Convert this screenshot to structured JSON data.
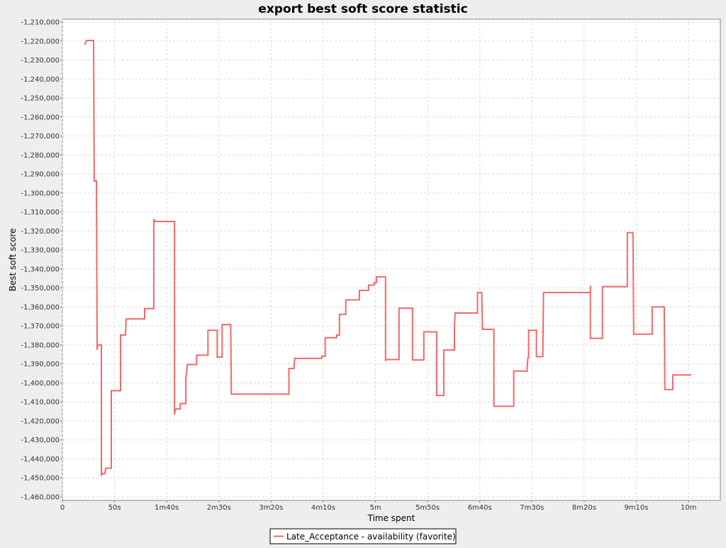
{
  "chart_data": {
    "type": "line",
    "title": "export best soft score statistic",
    "xlabel": "Time spent",
    "ylabel": "Best soft score",
    "x_unit": "seconds",
    "xlim": [
      0,
      630
    ],
    "ylim": [
      -1460000,
      -1210000
    ],
    "x_ticks": [
      {
        "value": 0,
        "label": "0"
      },
      {
        "value": 50,
        "label": "50s"
      },
      {
        "value": 100,
        "label": "1m40s"
      },
      {
        "value": 150,
        "label": "2m30s"
      },
      {
        "value": 200,
        "label": "3m20s"
      },
      {
        "value": 250,
        "label": "4m10s"
      },
      {
        "value": 300,
        "label": "5m"
      },
      {
        "value": 350,
        "label": "5m50s"
      },
      {
        "value": 400,
        "label": "6m40s"
      },
      {
        "value": 450,
        "label": "7m30s"
      },
      {
        "value": 500,
        "label": "8m20s"
      },
      {
        "value": 550,
        "label": "9m10s"
      },
      {
        "value": 600,
        "label": "10m"
      }
    ],
    "y_ticks": [
      {
        "value": -1210000,
        "label": "-1,210,000"
      },
      {
        "value": -1220000,
        "label": "-1,220,000"
      },
      {
        "value": -1230000,
        "label": "-1,230,000"
      },
      {
        "value": -1240000,
        "label": "-1,240,000"
      },
      {
        "value": -1250000,
        "label": "-1,250,000"
      },
      {
        "value": -1260000,
        "label": "-1,260,000"
      },
      {
        "value": -1270000,
        "label": "-1,270,000"
      },
      {
        "value": -1280000,
        "label": "-1,280,000"
      },
      {
        "value": -1290000,
        "label": "-1,290,000"
      },
      {
        "value": -1300000,
        "label": "-1,300,000"
      },
      {
        "value": -1310000,
        "label": "-1,310,000"
      },
      {
        "value": -1320000,
        "label": "-1,320,000"
      },
      {
        "value": -1330000,
        "label": "-1,330,000"
      },
      {
        "value": -1340000,
        "label": "-1,340,000"
      },
      {
        "value": -1350000,
        "label": "-1,350,000"
      },
      {
        "value": -1360000,
        "label": "-1,360,000"
      },
      {
        "value": -1370000,
        "label": "-1,370,000"
      },
      {
        "value": -1380000,
        "label": "-1,380,000"
      },
      {
        "value": -1390000,
        "label": "-1,390,000"
      },
      {
        "value": -1400000,
        "label": "-1,400,000"
      },
      {
        "value": -1410000,
        "label": "-1,410,000"
      },
      {
        "value": -1420000,
        "label": "-1,420,000"
      },
      {
        "value": -1430000,
        "label": "-1,430,000"
      },
      {
        "value": -1440000,
        "label": "-1,440,000"
      },
      {
        "value": -1450000,
        "label": "-1,450,000"
      },
      {
        "value": -1460000,
        "label": "-1,460,000"
      }
    ],
    "grid": true,
    "legend_position": "bottom-center",
    "series": [
      {
        "name": "Late_Acceptance - availability (favorite)",
        "color": "#f26868",
        "step": true,
        "points": [
          [
            21.4,
            -1222000
          ],
          [
            22.4,
            -1220800
          ],
          [
            23.1,
            -1219700
          ],
          [
            29.9,
            -1219700
          ],
          [
            30.5,
            -1293700
          ],
          [
            32.6,
            -1293700
          ],
          [
            33.3,
            -1382500
          ],
          [
            34.0,
            -1380000
          ],
          [
            37.4,
            -1380000
          ],
          [
            37.4,
            -1448900
          ],
          [
            38.1,
            -1447700
          ],
          [
            40.8,
            -1447700
          ],
          [
            41.5,
            -1444900
          ],
          [
            46.9,
            -1444900
          ],
          [
            46.9,
            -1404100
          ],
          [
            55.7,
            -1404100
          ],
          [
            55.7,
            -1374800
          ],
          [
            60.5,
            -1374800
          ],
          [
            61.1,
            -1366300
          ],
          [
            78.8,
            -1366300
          ],
          [
            78.8,
            -1360900
          ],
          [
            87.6,
            -1360900
          ],
          [
            87.6,
            -1313700
          ],
          [
            88.3,
            -1315000
          ],
          [
            107.4,
            -1315000
          ],
          [
            107.4,
            -1416700
          ],
          [
            108.1,
            -1413700
          ],
          [
            112.9,
            -1413700
          ],
          [
            112.9,
            -1410900
          ],
          [
            118.3,
            -1410900
          ],
          [
            118.3,
            -1397400
          ],
          [
            119.0,
            -1395000
          ],
          [
            119.7,
            -1390300
          ],
          [
            128.6,
            -1390300
          ],
          [
            128.6,
            -1385400
          ],
          [
            139.5,
            -1385400
          ],
          [
            139.5,
            -1372300
          ],
          [
            148.4,
            -1372300
          ],
          [
            148.4,
            -1386400
          ],
          [
            153.1,
            -1386400
          ],
          [
            153.1,
            -1369300
          ],
          [
            161.3,
            -1369300
          ],
          [
            161.9,
            -1405900
          ],
          [
            217.1,
            -1405900
          ],
          [
            217.1,
            -1392400
          ],
          [
            221.9,
            -1392400
          ],
          [
            222.6,
            -1387100
          ],
          [
            248.5,
            -1387100
          ],
          [
            248.5,
            -1385900
          ],
          [
            251.9,
            -1385900
          ],
          [
            251.9,
            -1376200
          ],
          [
            262.8,
            -1376200
          ],
          [
            262.8,
            -1374800
          ],
          [
            265.5,
            -1374800
          ],
          [
            265.5,
            -1363900
          ],
          [
            271.6,
            -1363900
          ],
          [
            271.6,
            -1356300
          ],
          [
            284.6,
            -1356300
          ],
          [
            284.6,
            -1351300
          ],
          [
            293.4,
            -1351300
          ],
          [
            293.4,
            -1348500
          ],
          [
            298.8,
            -1348500
          ],
          [
            298.8,
            -1347200
          ],
          [
            300.9,
            -1347200
          ],
          [
            300.9,
            -1344200
          ],
          [
            309.7,
            -1344200
          ],
          [
            309.7,
            -1388400
          ],
          [
            310.4,
            -1387700
          ],
          [
            322.6,
            -1387700
          ],
          [
            322.6,
            -1360700
          ],
          [
            335.5,
            -1360700
          ],
          [
            335.5,
            -1387900
          ],
          [
            346.4,
            -1387900
          ],
          [
            346.4,
            -1373100
          ],
          [
            358.7,
            -1373100
          ],
          [
            358.7,
            -1406600
          ],
          [
            365.5,
            -1406600
          ],
          [
            365.5,
            -1382700
          ],
          [
            375.7,
            -1382700
          ],
          [
            375.7,
            -1370000
          ],
          [
            376.4,
            -1363200
          ],
          [
            397.8,
            -1363200
          ],
          [
            397.8,
            -1352400
          ],
          [
            401.9,
            -1352400
          ],
          [
            402.6,
            -1371800
          ],
          [
            413.5,
            -1371800
          ],
          [
            413.5,
            -1412300
          ],
          [
            432.5,
            -1412300
          ],
          [
            432.5,
            -1393800
          ],
          [
            445.4,
            -1393800
          ],
          [
            445.4,
            -1392100
          ],
          [
            446.1,
            -1386700
          ],
          [
            446.8,
            -1386700
          ],
          [
            446.8,
            -1372300
          ],
          [
            454.3,
            -1372300
          ],
          [
            454.3,
            -1386200
          ],
          [
            460.4,
            -1386200
          ],
          [
            461.1,
            -1352400
          ],
          [
            506.0,
            -1352400
          ],
          [
            506.0,
            -1348800
          ],
          [
            506.0,
            -1376500
          ],
          [
            517.5,
            -1376500
          ],
          [
            517.5,
            -1349300
          ],
          [
            541.4,
            -1349300
          ],
          [
            541.4,
            -1320900
          ],
          [
            546.8,
            -1320900
          ],
          [
            547.5,
            -1374300
          ],
          [
            565.2,
            -1374300
          ],
          [
            565.2,
            -1360000
          ],
          [
            576.8,
            -1360000
          ],
          [
            577.4,
            -1403500
          ],
          [
            584.9,
            -1403500
          ],
          [
            584.9,
            -1395800
          ],
          [
            602.6,
            -1395800
          ]
        ]
      }
    ]
  }
}
